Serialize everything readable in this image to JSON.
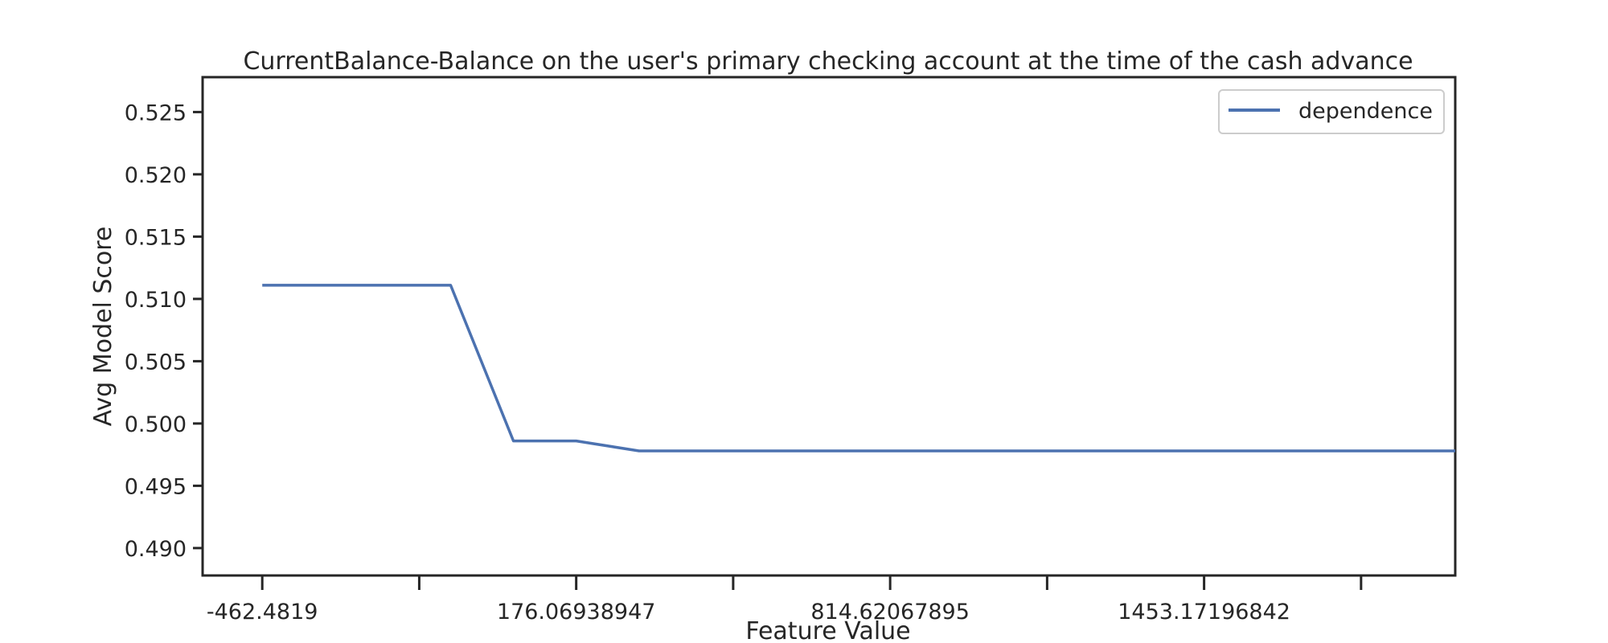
{
  "chart_data": {
    "type": "line",
    "title": "CurrentBalance-Balance on the user's primary checking account at the time of the cash advance",
    "xlabel": "Feature Value",
    "ylabel": "Avg Model Score",
    "x_tick_labels": [
      "-462.4819",
      "",
      "176.06938947",
      "",
      "814.62067895",
      "",
      "1453.17196842",
      ""
    ],
    "y_tick_labels": [
      "0.490",
      "0.495",
      "0.500",
      "0.505",
      "0.510",
      "0.515",
      "0.520",
      "0.525"
    ],
    "y_ticks": [
      0.49,
      0.495,
      0.5,
      0.505,
      0.51,
      0.515,
      0.52,
      0.525
    ],
    "ylim": [
      0.4878,
      0.5278
    ],
    "x_index_range": [
      -0.19,
      3.8
    ],
    "series": [
      {
        "name": "dependence",
        "color": "#4c72b0",
        "points": [
          {
            "x_index": 0.0,
            "y": 0.5111
          },
          {
            "x_index": 0.6,
            "y": 0.5111
          },
          {
            "x_index": 0.8,
            "y": 0.4986
          },
          {
            "x_index": 1.0,
            "y": 0.4986
          },
          {
            "x_index": 1.2,
            "y": 0.4978
          },
          {
            "x_index": 3.8,
            "y": 0.4978
          }
        ]
      }
    ],
    "legend": {
      "position": "top-right",
      "entries": [
        "dependence"
      ]
    },
    "grid": false
  }
}
